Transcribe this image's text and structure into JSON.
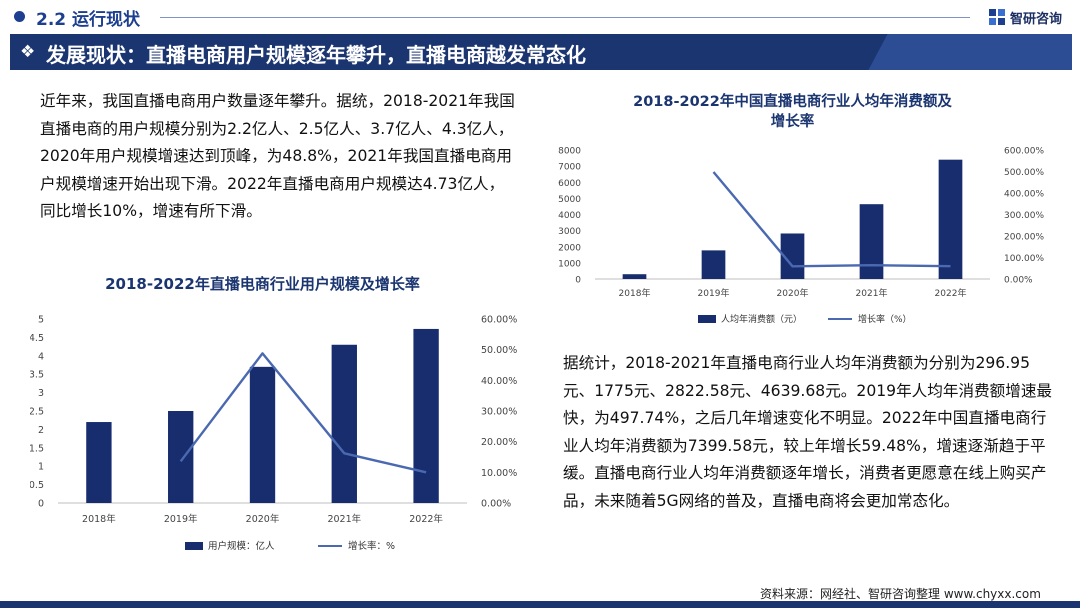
{
  "header": {
    "section_title": "2.2 运行现状",
    "brand": "智研咨询"
  },
  "banner": {
    "icon": "diamond-arrows-icon",
    "title": "发展现状：直播电商用户规模逐年攀升，直播电商越发常态化"
  },
  "body": {
    "paragraph_left": "近年来，我国直播电商用户数量逐年攀升。据统，2018-2021年我国直播电商的用户规模分别为2.2亿人、2.5亿人、3.7亿人、4.3亿人，2020年用户规模增速达到顶峰，为48.8%，2021年我国直播电商用户规模增速开始出现下滑。2022年直播电商用户规模达4.73亿人，同比增长10%，增速有所下滑。",
    "paragraph_right": "据统计，2018-2021年直播电商行业人均年消费额为分别为296.95元、1775元、2822.58元、4639.68元。2019年人均年消费额增速最快，为497.74%，之后几年增速变化不明显。2022年中国直播电商行业人均年消费额为7399.58元，较上年增长59.48%，增速逐渐趋于平缓。直播电商行业人均年消费额逐年增长，消费者更愿意在线上购买产品，未来随着5G网络的普及，直播电商将会更加常态化。"
  },
  "footer": {
    "source": "资料来源：网经社、智研咨询整理   www.chyxx.com"
  },
  "colors": {
    "navy": "#1b3570",
    "bar": "#182d6e",
    "line": "#4a69b0",
    "axis_text": "#444444"
  },
  "chart_data": [
    {
      "type": "bar",
      "title": "2018-2022年直播电商行业用户规模及增长率",
      "categories": [
        "2018年",
        "2019年",
        "2020年",
        "2021年",
        "2022年"
      ],
      "series": [
        {
          "name": "用户规模：亿人",
          "type": "bar",
          "axis": "left",
          "values": [
            2.2,
            2.5,
            3.7,
            4.3,
            4.73
          ]
        },
        {
          "name": "增长率：%",
          "type": "line",
          "axis": "right",
          "values": [
            null,
            13.6,
            48.8,
            16.2,
            10
          ]
        }
      ],
      "y_left": {
        "min": 0,
        "max": 5,
        "ticks": [
          "0",
          "0.5",
          "1",
          "1.5",
          "2",
          "2.5",
          "3",
          "3.5",
          "4",
          "4.5",
          "5"
        ]
      },
      "y_right": {
        "min": 0,
        "max": 60,
        "ticks": [
          "0.00%",
          "10.00%",
          "20.00%",
          "30.00%",
          "40.00%",
          "50.00%",
          "60.00%"
        ]
      },
      "legend": "bottom",
      "grid": false
    },
    {
      "type": "bar",
      "title": "2018-2022年中国直播电商行业人均年消费额及增长率",
      "categories": [
        "2018年",
        "2019年",
        "2020年",
        "2021年",
        "2022年"
      ],
      "series": [
        {
          "name": "人均年消费额（元）",
          "type": "bar",
          "axis": "left",
          "values": [
            296.95,
            1775,
            2822.58,
            4639.68,
            7399.58
          ]
        },
        {
          "name": "增长率（%）",
          "type": "line",
          "axis": "right",
          "values": [
            null,
            497.74,
            59.02,
            64.38,
            59.48
          ]
        }
      ],
      "y_left": {
        "min": 0,
        "max": 8000,
        "ticks": [
          "0",
          "1000",
          "2000",
          "3000",
          "4000",
          "5000",
          "6000",
          "7000",
          "8000"
        ]
      },
      "y_right": {
        "min": 0,
        "max": 600,
        "ticks": [
          "0.00%",
          "100.00%",
          "200.00%",
          "300.00%",
          "400.00%",
          "500.00%",
          "600.00%"
        ]
      },
      "legend": "bottom",
      "grid": false
    }
  ]
}
